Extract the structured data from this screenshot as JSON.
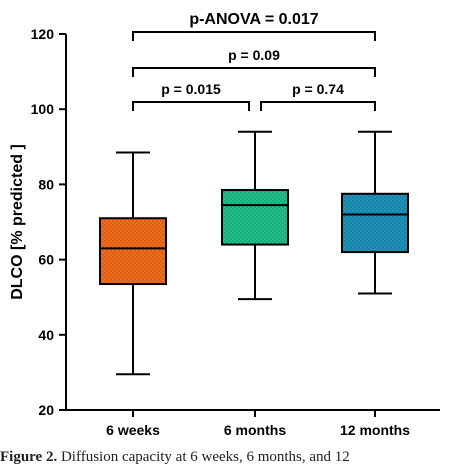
{
  "chart_data": {
    "type": "box",
    "ylabel": "DLCO [% predicted ]",
    "ylim": [
      20,
      120
    ],
    "yticks": [
      20,
      40,
      60,
      80,
      100,
      120
    ],
    "categories": [
      "6 weeks",
      "6 months",
      "12 months"
    ],
    "boxes": [
      {
        "category": "6 weeks",
        "min": 29.5,
        "q1": 53.5,
        "median": 63,
        "q3": 71,
        "max": 88.5,
        "color": "#f26a1b"
      },
      {
        "category": "6 months",
        "min": 49.5,
        "q1": 64,
        "median": 74.5,
        "q3": 78.5,
        "max": 94,
        "color": "#1fbf8a"
      },
      {
        "category": "12 months",
        "min": 51,
        "q1": 62,
        "median": 72,
        "q3": 77.5,
        "max": 94,
        "color": "#1e93b8"
      }
    ],
    "comparisons": [
      {
        "from": "6 weeks",
        "to": "12 months",
        "label": "p-ANOVA = 0.017",
        "level": 4
      },
      {
        "from": "6 weeks",
        "to": "12 months",
        "label": "p = 0.09",
        "level": 3
      },
      {
        "from": "6 weeks",
        "to": "6 months",
        "label": "p = 0.015",
        "level": 2
      },
      {
        "from": "6 months",
        "to": "12 months",
        "label": "p = 0.74",
        "level": 2
      }
    ]
  },
  "caption": {
    "prefix": "Figure 2.",
    "text": "Diffusion capacity at 6 weeks, 6 months, and 12"
  }
}
